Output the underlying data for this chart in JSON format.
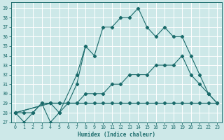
{
  "xlabel": "Humidex (Indice chaleur)",
  "bg_color": "#cde8e8",
  "grid_color": "#b0d8d8",
  "line_color": "#1a6b6b",
  "xlim": [
    -0.5,
    23.5
  ],
  "ylim": [
    27,
    39.6
  ],
  "xticks": [
    0,
    1,
    2,
    3,
    4,
    5,
    6,
    7,
    8,
    9,
    10,
    11,
    12,
    13,
    14,
    15,
    16,
    17,
    18,
    19,
    20,
    21,
    22,
    23
  ],
  "yticks": [
    27,
    28,
    29,
    30,
    31,
    32,
    33,
    34,
    35,
    36,
    37,
    38,
    39
  ],
  "series": [
    {
      "x": [
        0,
        1,
        2,
        3,
        4,
        5,
        6,
        7,
        8,
        9,
        10,
        11,
        12,
        13,
        14,
        15,
        16,
        17,
        18,
        19,
        20,
        21,
        22,
        23
      ],
      "y": [
        28,
        27,
        28,
        29,
        29,
        28,
        29,
        31,
        35,
        34,
        37,
        37,
        38,
        38,
        39,
        37,
        36,
        37,
        36,
        36,
        34,
        32,
        30,
        29
      ]
    },
    {
      "x": [
        0,
        1,
        2,
        3,
        4,
        5,
        7,
        8
      ],
      "y": [
        28,
        28,
        28,
        29,
        27,
        28,
        32,
        35
      ]
    },
    {
      "x": [
        0,
        4,
        5,
        6,
        7,
        8,
        9,
        10,
        11,
        12,
        13,
        14,
        15,
        16,
        17,
        18,
        19,
        20,
        21,
        22,
        23
      ],
      "y": [
        28,
        29,
        29,
        29,
        29,
        29,
        29,
        29,
        29,
        29,
        29,
        29,
        29,
        29,
        29,
        29,
        29,
        29,
        29,
        29,
        29
      ]
    },
    {
      "x": [
        0,
        4,
        5,
        6,
        7,
        8,
        9,
        10,
        11,
        12,
        13,
        14,
        15,
        16,
        17,
        18,
        19,
        20,
        21,
        22,
        23
      ],
      "y": [
        28,
        29,
        29,
        29,
        29,
        30,
        30,
        30,
        31,
        31,
        32,
        32,
        32,
        33,
        33,
        33,
        34,
        32,
        31,
        30,
        29
      ]
    }
  ]
}
